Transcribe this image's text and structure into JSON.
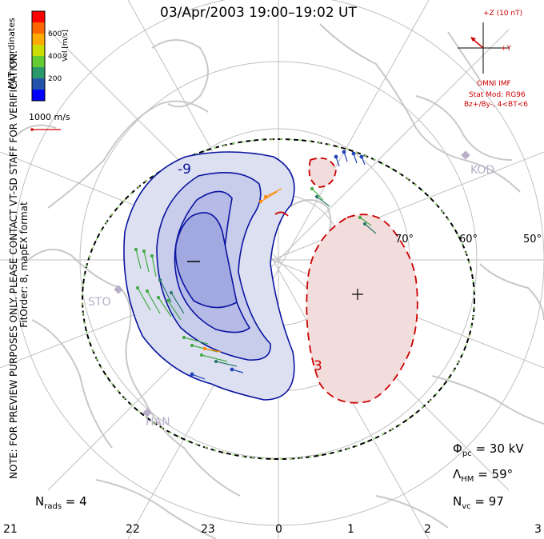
{
  "title": "03/Apr/2003 19:00–19:02 UT",
  "side_note": {
    "line1": "NOTE: FOR PREVIEW PURPOSES ONLY. PLEASE CONTACT VT-SD STAFF FOR VERIFICATION.",
    "line2": "FitOrder: 8, mapEX format"
  },
  "mlt_label": "MLT coordinates",
  "colorbar": {
    "label": "Vel [m/s]",
    "ticks": [
      "600",
      "400",
      "200"
    ],
    "colors": [
      "#ff0000",
      "#ff6600",
      "#ffaa00",
      "#ccdd00",
      "#66cc33",
      "#2a9a6a",
      "#2255aa",
      "#0000ff"
    ]
  },
  "vector_scale": "1000 m/s",
  "imf": {
    "scale_label": "+Z (10 nT)",
    "y_label": "+Y",
    "source": "OMNI IMF",
    "model": "Stat Mod: RG96",
    "condition": "Bz+/By-, 4<BT<6"
  },
  "latitude_labels": [
    "70°",
    "60°",
    "50°"
  ],
  "mlt_hours": [
    "21",
    "22",
    "23",
    "0",
    "1",
    "2",
    "3"
  ],
  "stations": [
    "KOD",
    "STO",
    "HAN"
  ],
  "contour_labels": [
    "-9",
    "3"
  ],
  "stats": {
    "phi_pc": "30 kV",
    "lambda_hm": "59°",
    "n_vc": "97",
    "n_rads": "4"
  }
}
